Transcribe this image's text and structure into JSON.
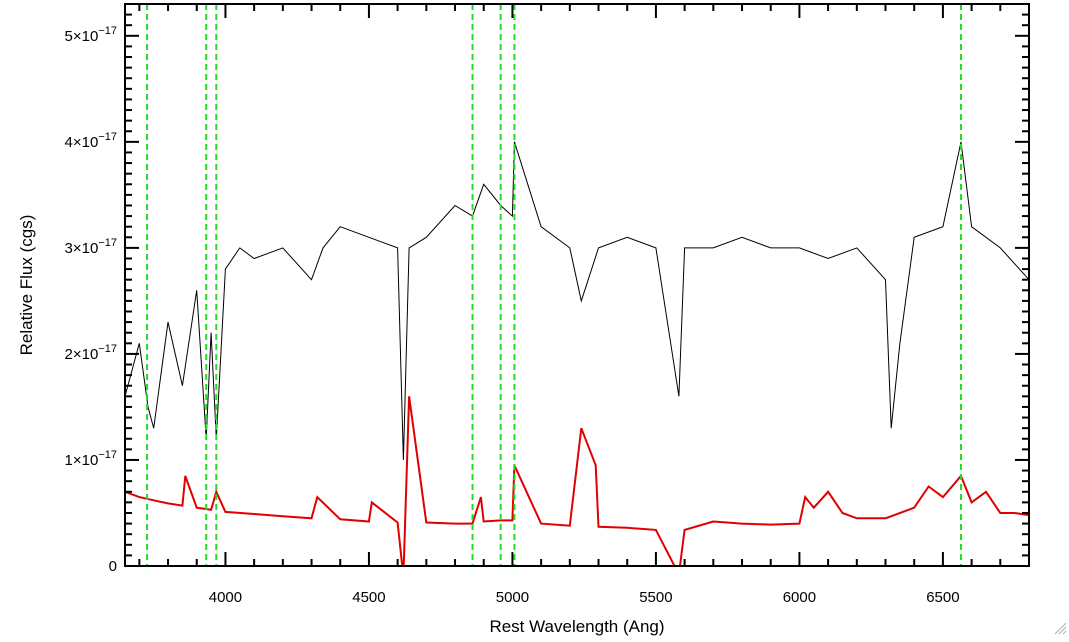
{
  "chart_data": {
    "type": "line",
    "xlabel": "Rest Wavelength (Ang)",
    "ylabel": "Relative Flux (cgs)",
    "xlim": [
      3650,
      6800
    ],
    "ylim": [
      0,
      5.3e-17
    ],
    "x_ticks": [
      {
        "value": 4000,
        "label": "4000"
      },
      {
        "value": 4500,
        "label": "4500"
      },
      {
        "value": 5000,
        "label": "5000"
      },
      {
        "value": 5500,
        "label": "5500"
      },
      {
        "value": 6000,
        "label": "6000"
      },
      {
        "value": 6500,
        "label": "6500"
      }
    ],
    "y_ticks": [
      {
        "value": 0,
        "mantissa": "0",
        "exponent": ""
      },
      {
        "value": 1e-17,
        "mantissa": "1×10",
        "exponent": "−17"
      },
      {
        "value": 2e-17,
        "mantissa": "2×10",
        "exponent": "−17"
      },
      {
        "value": 3e-17,
        "mantissa": "3×10",
        "exponent": "−17"
      },
      {
        "value": 4e-17,
        "mantissa": "4×10",
        "exponent": "−17"
      },
      {
        "value": 5e-17,
        "mantissa": "5×10",
        "exponent": "−17"
      }
    ],
    "grid": false,
    "series": [
      {
        "color": "#000000",
        "x": [
          3650,
          3700,
          3730,
          3750,
          3780,
          3800,
          3850,
          3900,
          3933,
          3950,
          3968,
          4000,
          4050,
          4100,
          4200,
          4300,
          4340,
          4400,
          4500,
          4600,
          4620,
          4640,
          4700,
          4800,
          4861,
          4900,
          4959,
          5000,
          5007,
          5100,
          5200,
          5240,
          5300,
          5400,
          5500,
          5580,
          5600,
          5700,
          5800,
          5900,
          6000,
          6100,
          6200,
          6300,
          6320,
          6350,
          6400,
          6500,
          6563,
          6600,
          6700,
          6800
        ],
        "y": [
          1.6e-17,
          2.1e-17,
          1.5e-17,
          1.3e-17,
          1.9e-17,
          2.3e-17,
          1.7e-17,
          2.6e-17,
          1.2e-17,
          2.2e-17,
          1.2e-17,
          2.8e-17,
          3e-17,
          2.9e-17,
          3e-17,
          2.7e-17,
          3e-17,
          3.2e-17,
          3.1e-17,
          3e-17,
          1e-17,
          3e-17,
          3.1e-17,
          3.4e-17,
          3.3e-17,
          3.6e-17,
          3.4e-17,
          3.3e-17,
          4e-17,
          3.2e-17,
          3e-17,
          2.5e-17,
          3e-17,
          3.1e-17,
          3e-17,
          1.6e-17,
          3e-17,
          3e-17,
          3.1e-17,
          3e-17,
          3e-17,
          2.9e-17,
          3e-17,
          2.7e-17,
          1.3e-17,
          2.1e-17,
          3.1e-17,
          3.2e-17,
          4e-17,
          3.2e-17,
          3e-17,
          2.7e-17
        ]
      },
      {
        "color": "#e00000",
        "x": [
          3650,
          3700,
          3750,
          3800,
          3850,
          3860,
          3900,
          3950,
          3968,
          4000,
          4100,
          4200,
          4300,
          4320,
          4400,
          4500,
          4510,
          4600,
          4620,
          4640,
          4700,
          4800,
          4861,
          4890,
          4900,
          4959,
          5000,
          5007,
          5100,
          5200,
          5240,
          5290,
          5300,
          5400,
          5500,
          5580,
          5600,
          5700,
          5800,
          5900,
          6000,
          6020,
          6050,
          6100,
          6150,
          6200,
          6300,
          6400,
          6450,
          6500,
          6563,
          6600,
          6650,
          6700,
          6750,
          6800
        ],
        "y": [
          7e-18,
          6.5e-18,
          6.2e-18,
          5.9e-18,
          5.7e-18,
          8.5e-18,
          5.5e-18,
          5.3e-18,
          7e-18,
          5.1e-18,
          4.9e-18,
          4.7e-18,
          4.5e-18,
          6.5e-18,
          4.4e-18,
          4.2e-18,
          6e-18,
          4.1e-18,
          -1e-18,
          1.6e-17,
          4.1e-18,
          4e-18,
          4e-18,
          6.5e-18,
          4.2e-18,
          4.3e-18,
          4.3e-18,
          9.5e-18,
          4e-18,
          3.8e-18,
          1.3e-17,
          9.5e-18,
          3.7e-18,
          3.6e-18,
          3.4e-18,
          -8e-19,
          3.4e-18,
          4.2e-18,
          4e-18,
          3.9e-18,
          4e-18,
          6.5e-18,
          5.5e-18,
          7e-18,
          5e-18,
          4.5e-18,
          4.5e-18,
          5.5e-18,
          7.5e-18,
          6.5e-18,
          8.5e-18,
          6e-18,
          7e-18,
          5e-18,
          5e-18,
          4.8e-18
        ]
      }
    ],
    "vlines": {
      "color": "#22dd22",
      "x": [
        3727,
        3933,
        3968,
        4861,
        4959,
        5007,
        6563
      ]
    }
  },
  "icons": {
    "corner": "resize-grip-icon"
  }
}
